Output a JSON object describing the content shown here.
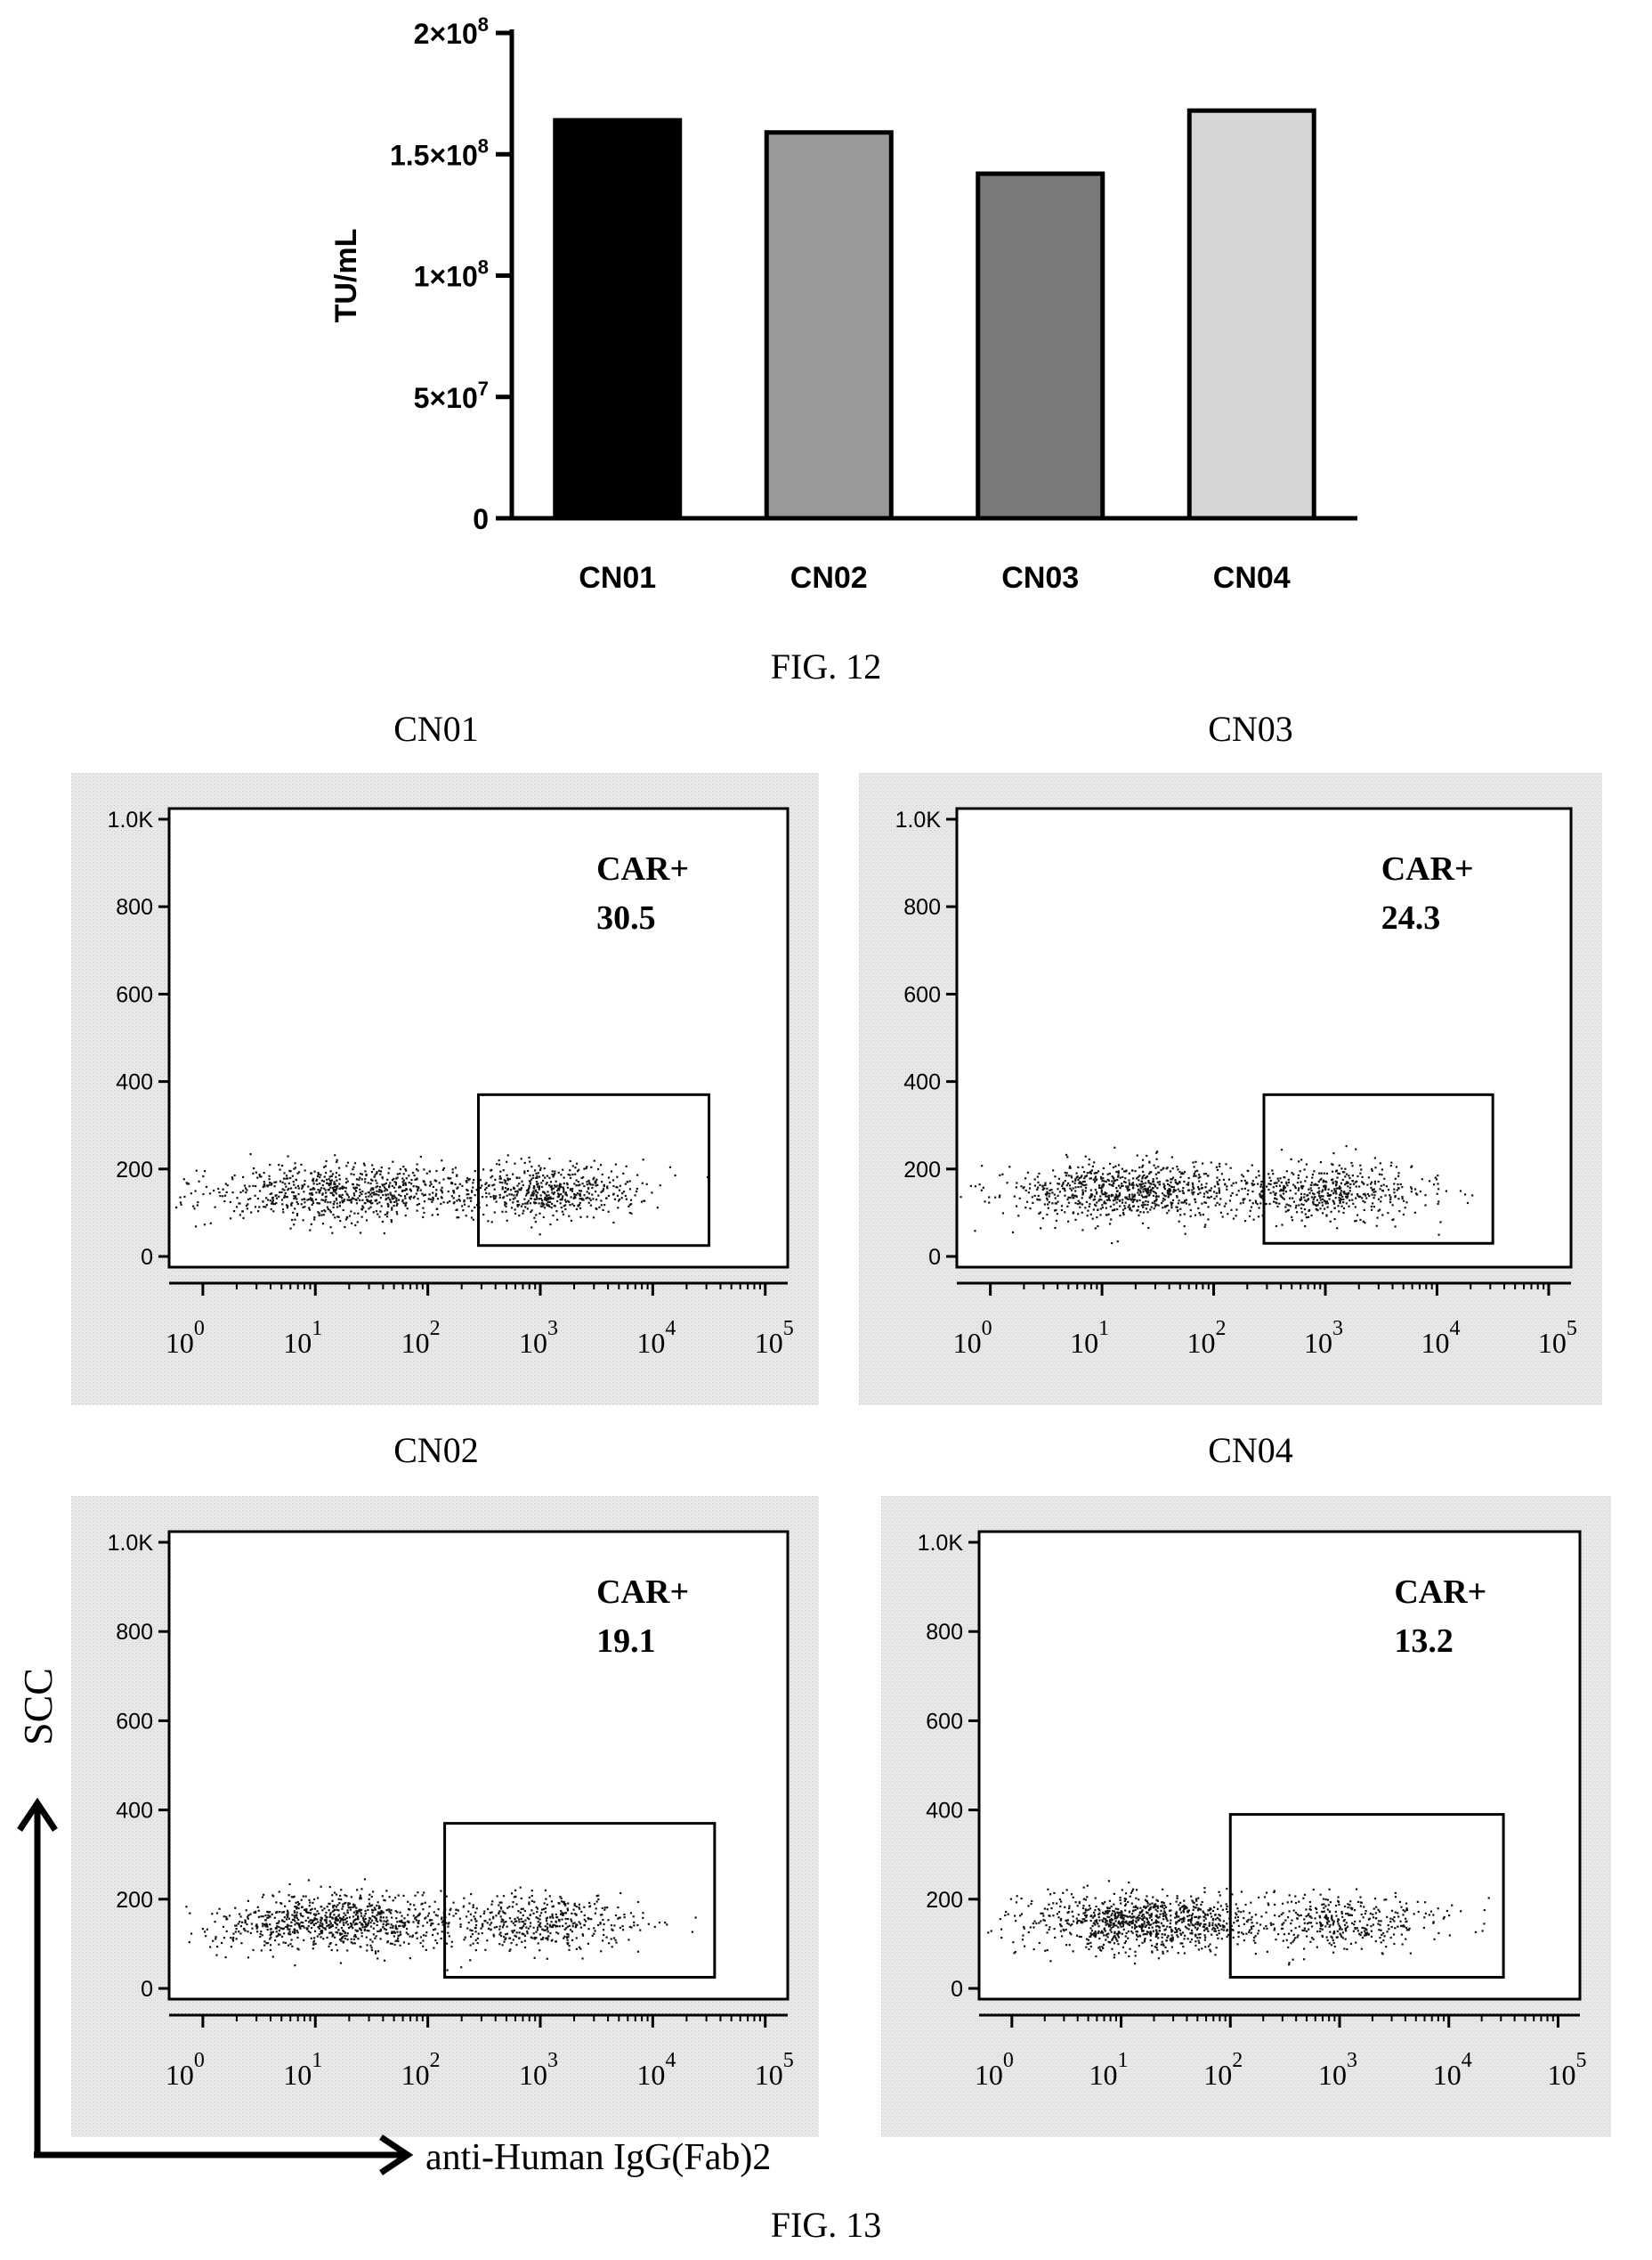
{
  "fig12_caption": "FIG. 12",
  "fig13_caption": "FIG. 13",
  "colors": {
    "CN01": "#000000",
    "CN02": "#999999",
    "CN03": "#7a7a7a",
    "CN04": "#d6d6d6",
    "panel_bg": "#e9e9e9"
  },
  "chart_data": [
    {
      "type": "bar",
      "categories": [
        "CN01",
        "CN02",
        "CN03",
        "CN04"
      ],
      "values": [
        164000000,
        159000000,
        142000000,
        168000000
      ],
      "ylabel": "TU/mL",
      "ylim": [
        0,
        200000000
      ],
      "yticks": [
        {
          "value": 0,
          "base": "0",
          "exp": ""
        },
        {
          "value": 50000000,
          "base": "5×10",
          "exp": "7"
        },
        {
          "value": 100000000,
          "base": "1×10",
          "exp": "8"
        },
        {
          "value": 150000000,
          "base": "1.5×10",
          "exp": "8"
        },
        {
          "value": 200000000,
          "base": "2×10",
          "exp": "8"
        }
      ],
      "grid": false,
      "legend": "none"
    },
    {
      "type": "scatter",
      "panels": [
        {
          "title": "CN01",
          "gate_label": "CAR+",
          "gate_value": "30.5",
          "gate_x": [
            2.45,
            4.5
          ],
          "gate_y": [
            25,
            370
          ]
        },
        {
          "title": "CN03",
          "gate_label": "CAR+",
          "gate_value": "24.3",
          "gate_x": [
            2.45,
            4.5
          ],
          "gate_y": [
            30,
            370
          ]
        },
        {
          "title": "CN02",
          "gate_label": "CAR+",
          "gate_value": "19.1",
          "gate_x": [
            2.15,
            4.55
          ],
          "gate_y": [
            25,
            370
          ]
        },
        {
          "title": "CN04",
          "gate_label": "CAR+",
          "gate_value": "13.2",
          "gate_x": [
            2.0,
            4.5
          ],
          "gate_y": [
            25,
            390
          ]
        }
      ],
      "ytick_labels": [
        "0",
        "200",
        "400",
        "600",
        "800",
        "1.0K"
      ],
      "ytick_values": [
        0,
        200,
        400,
        600,
        800,
        1000
      ],
      "xtick_exponents": [
        "0",
        "1",
        "2",
        "3",
        "4",
        "5"
      ],
      "xtick_base": "10",
      "ylim": [
        0,
        1000
      ],
      "xlim": [
        -0.3,
        5.2
      ],
      "ylabel": "SCC",
      "xlabel": "anti-Human IgG(Fab)2",
      "grid": false
    }
  ]
}
